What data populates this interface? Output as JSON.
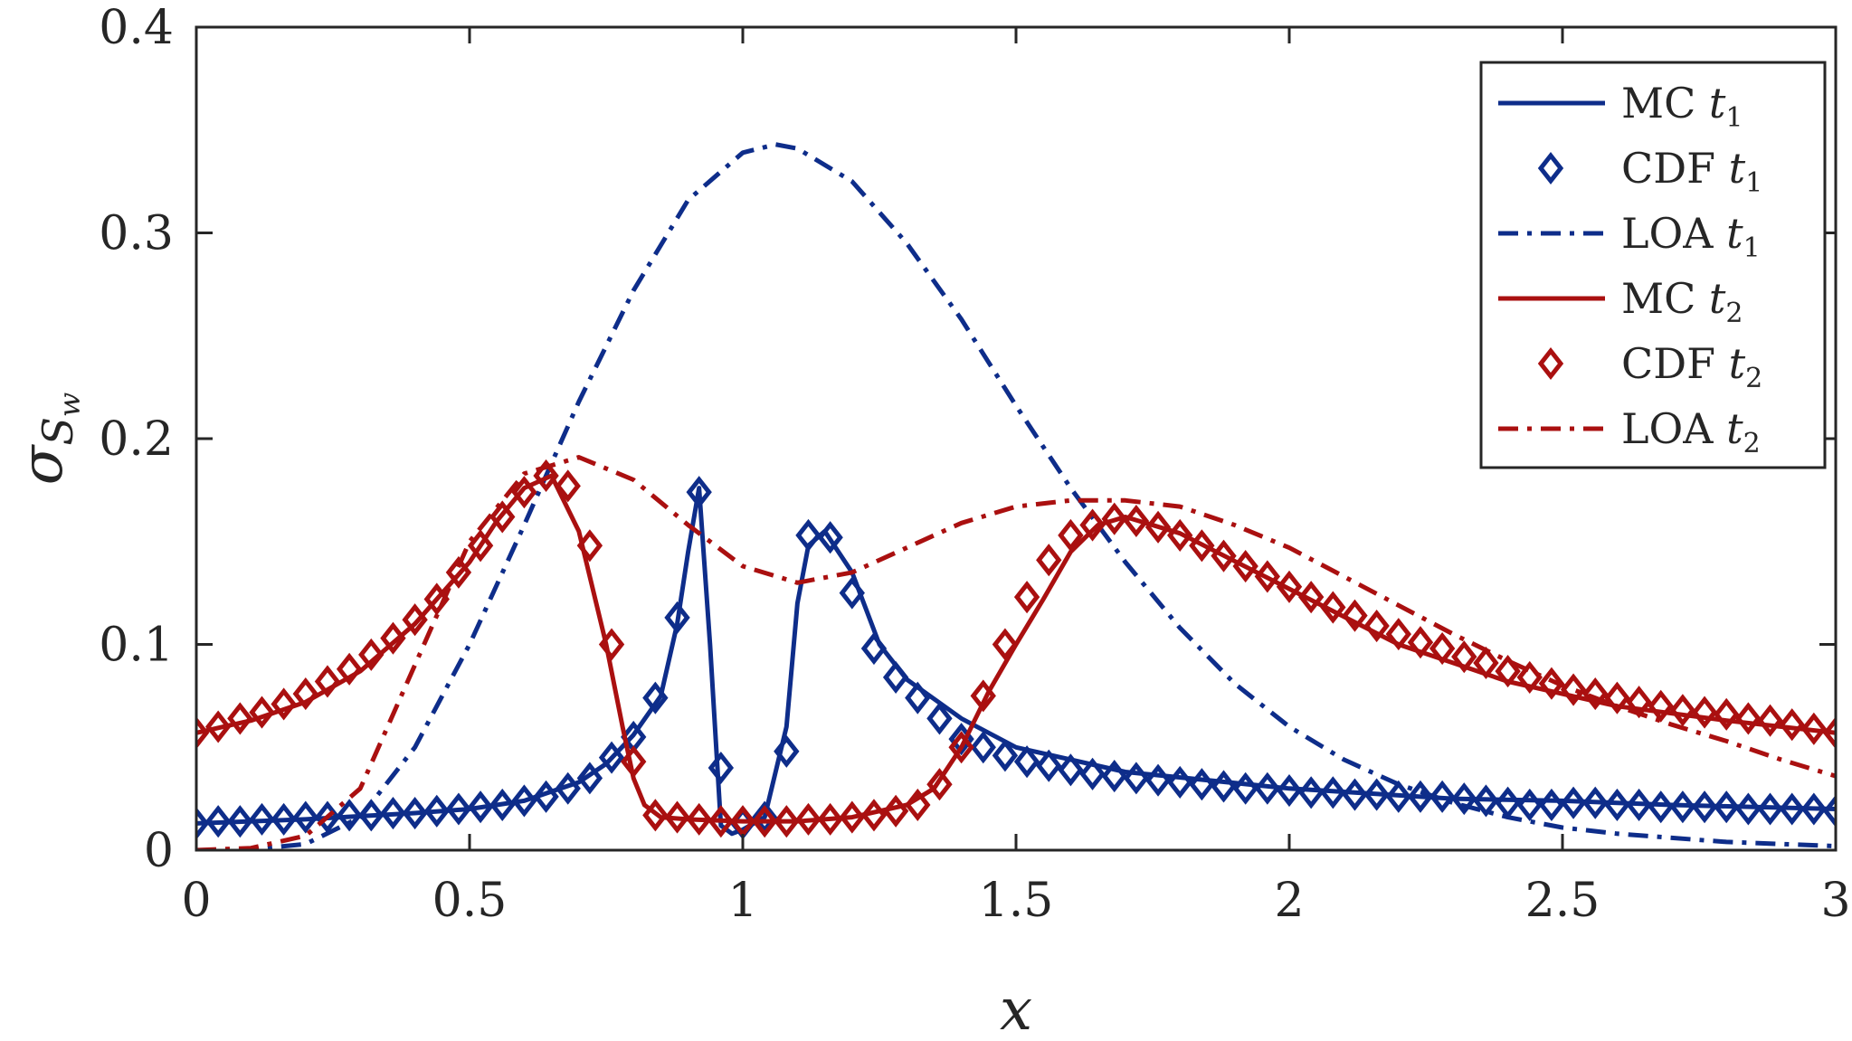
{
  "chart_data": {
    "type": "line",
    "xlabel": "x",
    "ylabel": {
      "symbol": "σ",
      "sub": "S",
      "subsub": "w"
    },
    "xlim": [
      0,
      3
    ],
    "ylim": [
      0,
      0.4
    ],
    "x_ticks": [
      0,
      0.5,
      1,
      1.5,
      2,
      2.5,
      3
    ],
    "x_tick_labels": [
      "0",
      "0.5",
      "1",
      "1.5",
      "2",
      "2.5",
      "3"
    ],
    "y_ticks": [
      0,
      0.1,
      0.2,
      0.3,
      0.4
    ],
    "y_tick_labels": [
      "0",
      "0.1",
      "0.2",
      "0.3",
      "0.4"
    ],
    "grid": false,
    "legend_position": "top-right",
    "series": [
      {
        "name": "MC t1",
        "label_main": "MC",
        "label_var": "t",
        "label_sub": "1",
        "color": "#0e2d8a",
        "style": "solid",
        "x": [
          0,
          0.2,
          0.4,
          0.5,
          0.6,
          0.7,
          0.75,
          0.8,
          0.85,
          0.88,
          0.9,
          0.92,
          0.94,
          0.96,
          0.98,
          1.0,
          1.04,
          1.08,
          1.1,
          1.12,
          1.15,
          1.2,
          1.25,
          1.3,
          1.4,
          1.5,
          1.7,
          2.0,
          2.3,
          2.5,
          2.7,
          3.0
        ],
        "y": [
          0.013,
          0.015,
          0.018,
          0.02,
          0.024,
          0.033,
          0.042,
          0.056,
          0.075,
          0.11,
          0.145,
          0.176,
          0.1,
          0.012,
          0.008,
          0.01,
          0.016,
          0.06,
          0.12,
          0.148,
          0.155,
          0.135,
          0.1,
          0.083,
          0.064,
          0.05,
          0.038,
          0.03,
          0.025,
          0.024,
          0.022,
          0.02
        ]
      },
      {
        "name": "CDF t1",
        "label_main": "CDF",
        "label_var": "t",
        "label_sub": "1",
        "color": "#0e2d8a",
        "style": "diamond",
        "x": [
          0,
          0.04,
          0.08,
          0.12,
          0.16,
          0.2,
          0.24,
          0.28,
          0.32,
          0.36,
          0.4,
          0.44,
          0.48,
          0.52,
          0.56,
          0.6,
          0.64,
          0.68,
          0.72,
          0.76,
          0.8,
          0.84,
          0.88,
          0.92,
          0.96,
          1.0,
          1.04,
          1.08,
          1.12,
          1.16,
          1.2,
          1.24,
          1.28,
          1.32,
          1.36,
          1.4,
          1.44,
          1.48,
          1.52,
          1.56,
          1.6,
          1.64,
          1.68,
          1.72,
          1.76,
          1.8,
          1.84,
          1.88,
          1.92,
          1.96,
          2.0,
          2.04,
          2.08,
          2.12,
          2.16,
          2.2,
          2.24,
          2.28,
          2.32,
          2.36,
          2.4,
          2.44,
          2.48,
          2.52,
          2.56,
          2.6,
          2.64,
          2.68,
          2.72,
          2.76,
          2.8,
          2.84,
          2.88,
          2.92,
          2.96,
          3.0
        ],
        "y": [
          0.013,
          0.014,
          0.014,
          0.015,
          0.015,
          0.016,
          0.016,
          0.017,
          0.017,
          0.018,
          0.018,
          0.019,
          0.02,
          0.021,
          0.022,
          0.024,
          0.026,
          0.03,
          0.035,
          0.045,
          0.055,
          0.074,
          0.113,
          0.174,
          0.04,
          0.013,
          0.016,
          0.048,
          0.153,
          0.152,
          0.125,
          0.098,
          0.084,
          0.074,
          0.064,
          0.054,
          0.05,
          0.046,
          0.043,
          0.041,
          0.039,
          0.037,
          0.036,
          0.035,
          0.034,
          0.033,
          0.032,
          0.031,
          0.03,
          0.03,
          0.029,
          0.028,
          0.028,
          0.027,
          0.027,
          0.026,
          0.026,
          0.026,
          0.025,
          0.024,
          0.023,
          0.022,
          0.022,
          0.023,
          0.023,
          0.022,
          0.022,
          0.021,
          0.021,
          0.021,
          0.021,
          0.02,
          0.02,
          0.02,
          0.02,
          0.019
        ]
      },
      {
        "name": "LOA t1",
        "label_main": "LOA",
        "label_var": "t",
        "label_sub": "1",
        "color": "#0e2d8a",
        "style": "dashdot",
        "x": [
          0,
          0.1,
          0.2,
          0.3,
          0.4,
          0.5,
          0.6,
          0.7,
          0.8,
          0.9,
          1.0,
          1.06,
          1.1,
          1.2,
          1.3,
          1.4,
          1.5,
          1.6,
          1.7,
          1.8,
          1.9,
          2.0,
          2.1,
          2.2,
          2.3,
          2.4,
          2.5,
          2.6,
          2.7,
          2.8,
          2.9,
          3.0
        ],
        "y": [
          0,
          0.0003,
          0.003,
          0.016,
          0.05,
          0.1,
          0.158,
          0.218,
          0.272,
          0.316,
          0.339,
          0.343,
          0.341,
          0.325,
          0.295,
          0.258,
          0.216,
          0.176,
          0.14,
          0.108,
          0.081,
          0.06,
          0.044,
          0.032,
          0.023,
          0.016,
          0.011,
          0.008,
          0.006,
          0.004,
          0.003,
          0.002
        ]
      },
      {
        "name": "MC t2",
        "label_main": "MC",
        "label_var": "t",
        "label_sub": "2",
        "color": "#aa1010",
        "style": "solid",
        "x": [
          0,
          0.1,
          0.2,
          0.3,
          0.4,
          0.5,
          0.55,
          0.6,
          0.65,
          0.7,
          0.75,
          0.78,
          0.8,
          0.82,
          0.85,
          0.9,
          1.0,
          1.1,
          1.2,
          1.3,
          1.35,
          1.4,
          1.45,
          1.5,
          1.55,
          1.6,
          1.65,
          1.7,
          1.8,
          2.0,
          2.2,
          2.4,
          2.6,
          2.8,
          3.0
        ],
        "y": [
          0.057,
          0.063,
          0.072,
          0.087,
          0.11,
          0.14,
          0.16,
          0.176,
          0.182,
          0.155,
          0.1,
          0.06,
          0.035,
          0.022,
          0.016,
          0.015,
          0.014,
          0.014,
          0.016,
          0.022,
          0.03,
          0.05,
          0.077,
          0.1,
          0.122,
          0.145,
          0.158,
          0.162,
          0.154,
          0.127,
          0.1,
          0.082,
          0.07,
          0.063,
          0.057
        ]
      },
      {
        "name": "CDF t2",
        "label_main": "CDF",
        "label_var": "t",
        "label_sub": "2",
        "color": "#aa1010",
        "style": "diamond",
        "x": [
          0,
          0.04,
          0.08,
          0.12,
          0.16,
          0.2,
          0.24,
          0.28,
          0.32,
          0.36,
          0.4,
          0.44,
          0.48,
          0.52,
          0.56,
          0.6,
          0.64,
          0.68,
          0.72,
          0.76,
          0.8,
          0.84,
          0.88,
          0.92,
          0.96,
          1.0,
          1.04,
          1.08,
          1.12,
          1.16,
          1.2,
          1.24,
          1.28,
          1.32,
          1.36,
          1.4,
          1.44,
          1.48,
          1.52,
          1.56,
          1.6,
          1.64,
          1.68,
          1.72,
          1.76,
          1.8,
          1.84,
          1.88,
          1.92,
          1.96,
          2.0,
          2.04,
          2.08,
          2.12,
          2.16,
          2.2,
          2.24,
          2.28,
          2.32,
          2.36,
          2.4,
          2.44,
          2.48,
          2.52,
          2.56,
          2.6,
          2.64,
          2.68,
          2.72,
          2.76,
          2.8,
          2.84,
          2.88,
          2.92,
          2.96,
          3.0
        ],
        "y": [
          0.057,
          0.06,
          0.064,
          0.067,
          0.071,
          0.076,
          0.082,
          0.088,
          0.095,
          0.103,
          0.112,
          0.122,
          0.135,
          0.148,
          0.162,
          0.174,
          0.182,
          0.177,
          0.148,
          0.1,
          0.043,
          0.017,
          0.016,
          0.015,
          0.014,
          0.014,
          0.014,
          0.014,
          0.015,
          0.015,
          0.016,
          0.017,
          0.019,
          0.022,
          0.032,
          0.05,
          0.075,
          0.1,
          0.123,
          0.141,
          0.153,
          0.158,
          0.161,
          0.16,
          0.157,
          0.153,
          0.148,
          0.143,
          0.138,
          0.133,
          0.128,
          0.123,
          0.118,
          0.114,
          0.109,
          0.105,
          0.101,
          0.098,
          0.094,
          0.091,
          0.087,
          0.084,
          0.081,
          0.078,
          0.076,
          0.074,
          0.072,
          0.07,
          0.068,
          0.067,
          0.066,
          0.064,
          0.063,
          0.061,
          0.059,
          0.057
        ]
      },
      {
        "name": "LOA t2",
        "label_main": "LOA",
        "label_var": "t",
        "label_sub": "2",
        "color": "#aa1010",
        "style": "dashdot",
        "x": [
          0,
          0.1,
          0.2,
          0.3,
          0.4,
          0.5,
          0.6,
          0.7,
          0.8,
          0.9,
          1.0,
          1.1,
          1.2,
          1.3,
          1.4,
          1.5,
          1.6,
          1.7,
          1.8,
          1.9,
          2.0,
          2.1,
          2.2,
          2.3,
          2.4,
          2.5,
          2.6,
          2.7,
          2.8,
          2.9,
          3.0
        ],
        "y": [
          0,
          0.001,
          0.007,
          0.03,
          0.09,
          0.15,
          0.183,
          0.191,
          0.18,
          0.158,
          0.138,
          0.13,
          0.135,
          0.147,
          0.159,
          0.167,
          0.17,
          0.17,
          0.167,
          0.158,
          0.147,
          0.133,
          0.119,
          0.105,
          0.092,
          0.08,
          0.07,
          0.061,
          0.053,
          0.044,
          0.036
        ]
      }
    ]
  }
}
